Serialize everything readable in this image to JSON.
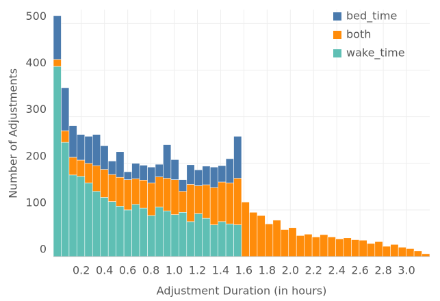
{
  "chart_data": {
    "type": "stacked_histogram",
    "x_label": "Adjustment Duration (in hours)",
    "y_label": "Number of Adjustments",
    "bins": [
      -0.04,
      0.0275,
      0.095,
      0.1625,
      0.23,
      0.2975,
      0.365,
      0.4325,
      0.5,
      0.5675,
      0.635,
      0.7025,
      0.77,
      0.8375,
      0.905,
      0.9725,
      1.04,
      1.1075,
      1.175,
      1.2425,
      1.31,
      1.3775,
      1.445,
      1.5125,
      1.58,
      1.6475,
      1.715,
      1.7825,
      1.85,
      1.9175,
      1.985,
      2.0525,
      2.12,
      2.1875,
      2.255,
      2.3225,
      2.39,
      2.4575,
      2.525,
      2.5925,
      2.66,
      2.7275,
      2.795,
      2.8625,
      2.93,
      2.9975,
      3.065,
      3.1325,
      3.2
    ],
    "series": [
      {
        "name": "wake_time",
        "color": "#5fbfb4",
        "values": [
          408,
          245,
          175,
          172,
          158,
          140,
          127,
          118,
          108,
          100,
          112,
          104,
          88,
          106,
          98,
          90,
          95,
          75,
          92,
          82,
          68,
          75,
          70,
          68,
          0,
          0,
          0,
          0,
          0,
          0,
          0,
          0,
          0,
          0,
          0,
          0,
          0,
          0,
          0,
          0,
          0,
          0,
          0,
          0,
          0,
          0,
          0,
          0
        ]
      },
      {
        "name": "both",
        "color": "#ff8c0a",
        "values": [
          15,
          25,
          38,
          35,
          42,
          55,
          60,
          58,
          62,
          65,
          55,
          60,
          70,
          65,
          70,
          75,
          45,
          80,
          60,
          72,
          80,
          85,
          88,
          100,
          117,
          95,
          88,
          70,
          78,
          58,
          62,
          45,
          48,
          42,
          47,
          42,
          38,
          40,
          36,
          35,
          28,
          32,
          22,
          26,
          20,
          17,
          12,
          6
        ]
      },
      {
        "name": "bed_time",
        "color": "#4a7aad",
        "values": [
          94,
          92,
          68,
          55,
          58,
          67,
          51,
          29,
          55,
          17,
          33,
          32,
          34,
          27,
          72,
          43,
          25,
          42,
          34,
          40,
          44,
          35,
          52,
          90,
          0,
          0,
          0,
          0,
          0,
          0,
          0,
          0,
          0,
          0,
          0,
          0,
          0,
          0,
          0,
          0,
          0,
          0,
          0,
          0,
          0,
          0,
          0,
          0
        ]
      }
    ],
    "xlim": [
      -0.04,
      3.2
    ],
    "ylim": [
      0,
      530
    ],
    "xticks": [
      0.2,
      0.4,
      0.6,
      0.8,
      {
        "value": 1,
        "label": "1.0"
      },
      1.2,
      1.4,
      1.6,
      1.8,
      {
        "value": 2,
        "label": "2.0"
      },
      2.2,
      2.4,
      2.6,
      2.8,
      {
        "value": 3,
        "label": "3.0"
      }
    ],
    "yticks": [
      0,
      100,
      200,
      300,
      400,
      500
    ],
    "grid": true,
    "legend": "top-right"
  }
}
